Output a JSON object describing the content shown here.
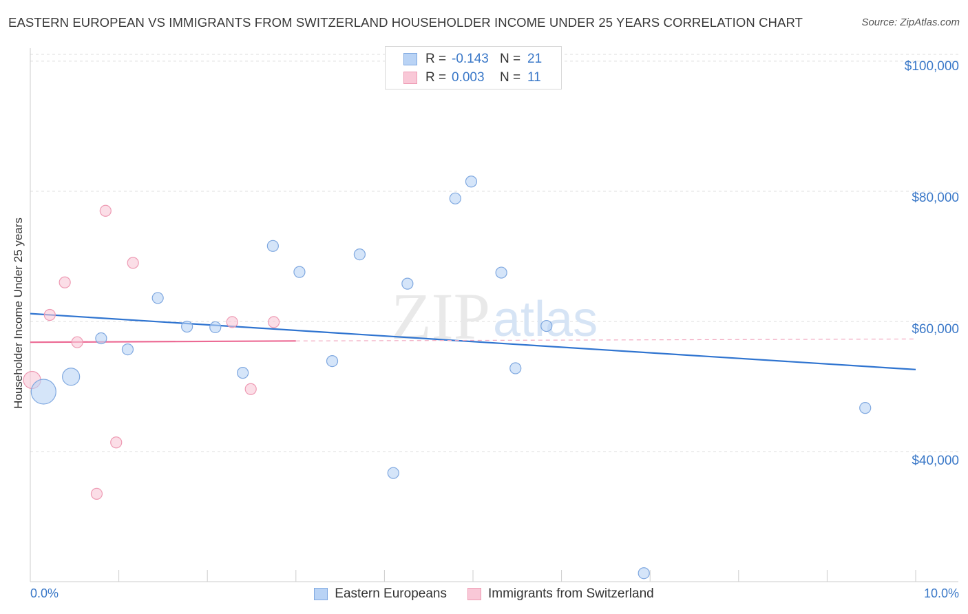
{
  "header": {
    "title": "EASTERN EUROPEAN VS IMMIGRANTS FROM SWITZERLAND HOUSEHOLDER INCOME UNDER 25 YEARS CORRELATION CHART",
    "source": "Source: ZipAtlas.com"
  },
  "watermark": {
    "zip": "ZIP",
    "atlas": "atlas"
  },
  "legend": {
    "rows": [
      {
        "r_label": "R =",
        "r_value": "-0.143",
        "n_label": "N =",
        "n_value": "21"
      },
      {
        "r_label": "R =",
        "r_value": "0.003",
        "n_label": "N =",
        "n_value": "11"
      }
    ]
  },
  "colors": {
    "blue_fill": "#b9d3f5",
    "blue_stroke": "#7fa8e0",
    "blue_line": "#2f74d0",
    "pink_fill": "#f9c8d7",
    "pink_stroke": "#ee9ab3",
    "pink_line": "#ec6a94",
    "axis_text": "#3a78c8",
    "grid": "#dcdcdc"
  },
  "chart_data": {
    "type": "scatter",
    "title": "EASTERN EUROPEAN VS IMMIGRANTS FROM SWITZERLAND HOUSEHOLDER INCOME UNDER 25 YEARS CORRELATION CHART",
    "xlabel": "",
    "ylabel": "Householder Income Under 25 years",
    "xlim": [
      0,
      10
    ],
    "ylim": [
      20000,
      102000
    ],
    "x_tick_labels": [
      "0.0%",
      "10.0%"
    ],
    "y_ticks": [
      40000,
      60000,
      80000,
      100000
    ],
    "y_tick_labels": [
      "$40,000",
      "$60,000",
      "$80,000",
      "$100,000"
    ],
    "grid": true,
    "legend_position": "top-center",
    "series": [
      {
        "name": "Eastern Europeans",
        "color": "#b9d3f5",
        "trend": {
          "x": [
            0,
            10
          ],
          "y": [
            61200,
            52600
          ],
          "style": "solid"
        },
        "points": [
          {
            "x": 0.15,
            "y": 49200,
            "size": "large"
          },
          {
            "x": 0.46,
            "y": 51500,
            "size": "medium"
          },
          {
            "x": 0.8,
            "y": 57400,
            "size": "small"
          },
          {
            "x": 1.1,
            "y": 55700,
            "size": "small"
          },
          {
            "x": 1.44,
            "y": 63600,
            "size": "small"
          },
          {
            "x": 1.77,
            "y": 59200,
            "size": "small"
          },
          {
            "x": 2.09,
            "y": 59100,
            "size": "small"
          },
          {
            "x": 2.4,
            "y": 52100,
            "size": "small"
          },
          {
            "x": 2.74,
            "y": 71600,
            "size": "small"
          },
          {
            "x": 3.04,
            "y": 67600,
            "size": "small"
          },
          {
            "x": 3.41,
            "y": 53900,
            "size": "small"
          },
          {
            "x": 3.72,
            "y": 70300,
            "size": "small"
          },
          {
            "x": 4.1,
            "y": 36700,
            "size": "small"
          },
          {
            "x": 4.26,
            "y": 65800,
            "size": "small"
          },
          {
            "x": 4.8,
            "y": 78900,
            "size": "small"
          },
          {
            "x": 4.98,
            "y": 81500,
            "size": "small"
          },
          {
            "x": 5.32,
            "y": 67500,
            "size": "small"
          },
          {
            "x": 5.48,
            "y": 52800,
            "size": "small"
          },
          {
            "x": 5.83,
            "y": 59300,
            "size": "small"
          },
          {
            "x": 6.93,
            "y": 21300,
            "size": "small"
          },
          {
            "x": 9.43,
            "y": 46700,
            "size": "small"
          }
        ]
      },
      {
        "name": "Immigrants from Switzerland",
        "color": "#f9c8d7",
        "trend": {
          "x": [
            0,
            3.0,
            10
          ],
          "y": [
            56800,
            57000,
            57300
          ],
          "style": "solid-then-dashed"
        },
        "points": [
          {
            "x": 0.02,
            "y": 51000,
            "size": "medium"
          },
          {
            "x": 0.22,
            "y": 61000,
            "size": "small"
          },
          {
            "x": 0.39,
            "y": 66000,
            "size": "small"
          },
          {
            "x": 0.53,
            "y": 56800,
            "size": "small"
          },
          {
            "x": 0.75,
            "y": 33500,
            "size": "small"
          },
          {
            "x": 0.85,
            "y": 77000,
            "size": "small"
          },
          {
            "x": 0.97,
            "y": 41400,
            "size": "small"
          },
          {
            "x": 1.16,
            "y": 69000,
            "size": "small"
          },
          {
            "x": 2.28,
            "y": 59900,
            "size": "small"
          },
          {
            "x": 2.49,
            "y": 49600,
            "size": "small"
          },
          {
            "x": 2.75,
            "y": 59900,
            "size": "small"
          }
        ]
      }
    ]
  }
}
